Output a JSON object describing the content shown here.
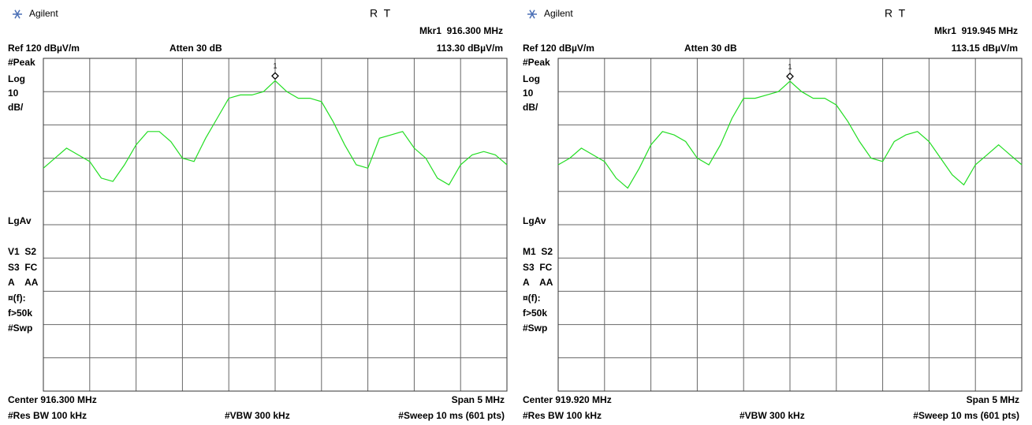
{
  "ylim": [
    20,
    120
  ],
  "screens": [
    {
      "brand": "Agilent",
      "status": "R  T",
      "marker_freq": "Mkr1  916.300 MHz",
      "ref": "Ref 120 dBµV/m",
      "atten": "Atten 30 dB",
      "marker_level": "113.30 dBµV/m",
      "marker_number": "1",
      "side_labels": [
        "#Peak",
        "Log",
        "10",
        "dB/",
        "LgAv",
        "V1  S2",
        "S3  FC",
        "A    AA",
        "¤(f):",
        "f>50k",
        "#Swp"
      ],
      "center": "Center 916.300 MHz",
      "span": "Span 5 MHz",
      "res_bw": "#Res BW 100 kHz",
      "vbw": "#VBW 300 kHz",
      "sweep": "#Sweep 10 ms (601 pts)",
      "trace": [
        87,
        90,
        93,
        91,
        89,
        84,
        83,
        88,
        94,
        98,
        98,
        95,
        90,
        89,
        96,
        102,
        108,
        109,
        109,
        110,
        113.3,
        110,
        108,
        108,
        107,
        101,
        94,
        88,
        87,
        96,
        97,
        98,
        93,
        90,
        84,
        82,
        88,
        91,
        92,
        91,
        88
      ]
    },
    {
      "brand": "Agilent",
      "status": "R  T",
      "marker_freq": "Mkr1  919.945 MHz",
      "ref": "Ref 120 dBµV/m",
      "atten": "Atten 30 dB",
      "marker_level": "113.15 dBµV/m",
      "marker_number": "1",
      "side_labels": [
        "#Peak",
        "Log",
        "10",
        "dB/",
        "LgAv",
        "M1  S2",
        "S3  FC",
        "A    AA",
        "¤(f):",
        "f>50k",
        "#Swp"
      ],
      "center": "Center 919.920 MHz",
      "span": "Span 5 MHz",
      "res_bw": "#Res BW 100 kHz",
      "vbw": "#VBW 300 kHz",
      "sweep": "#Sweep 10 ms (601 pts)",
      "trace": [
        88,
        90,
        93,
        91,
        89,
        84,
        81,
        87,
        94,
        98,
        97,
        95,
        90,
        88,
        94,
        102,
        108,
        108,
        109,
        110,
        113.15,
        110,
        108,
        108,
        106,
        101,
        95,
        90,
        89,
        95,
        97,
        98,
        95,
        90,
        85,
        82,
        88,
        91,
        94,
        91,
        88
      ]
    }
  ]
}
